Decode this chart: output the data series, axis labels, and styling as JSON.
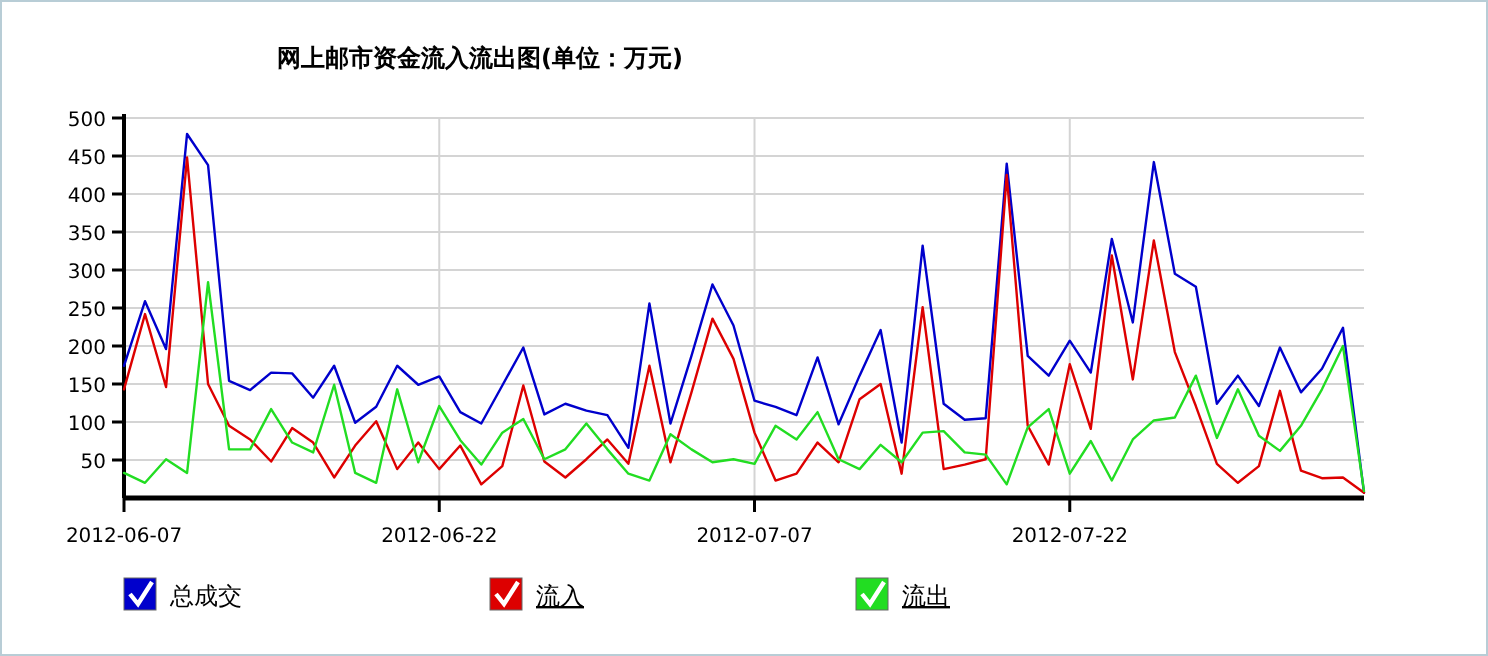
{
  "chart_data": {
    "type": "line",
    "title": "网上邮市资金流入流出图(单位：万元)",
    "x": [
      "2012-06-07",
      "2012-06-08",
      "2012-06-09",
      "2012-06-10",
      "2012-06-11",
      "2012-06-12",
      "2012-06-13",
      "2012-06-14",
      "2012-06-15",
      "2012-06-16",
      "2012-06-17",
      "2012-06-18",
      "2012-06-19",
      "2012-06-20",
      "2012-06-21",
      "2012-06-22",
      "2012-06-23",
      "2012-06-24",
      "2012-06-25",
      "2012-06-26",
      "2012-06-27",
      "2012-06-28",
      "2012-06-29",
      "2012-06-30",
      "2012-07-01",
      "2012-07-02",
      "2012-07-03",
      "2012-07-04",
      "2012-07-05",
      "2012-07-06",
      "2012-07-07",
      "2012-07-08",
      "2012-07-09",
      "2012-07-10",
      "2012-07-11",
      "2012-07-12",
      "2012-07-13",
      "2012-07-14",
      "2012-07-15",
      "2012-07-16",
      "2012-07-17",
      "2012-07-18",
      "2012-07-19",
      "2012-07-20",
      "2012-07-21",
      "2012-07-22",
      "2012-07-23",
      "2012-07-24",
      "2012-07-25",
      "2012-07-26",
      "2012-07-27",
      "2012-07-28",
      "2012-07-29",
      "2012-07-30",
      "2012-07-31",
      "2012-08-01",
      "2012-08-02",
      "2012-08-03",
      "2012-08-04",
      "2012-08-05"
    ],
    "series": [
      {
        "name": "总成交",
        "color": "#0000cc",
        "values": [
          174,
          259,
          196,
          479,
          438,
          154,
          142,
          165,
          164,
          132,
          174,
          99,
          120,
          174,
          149,
          160,
          113,
          98,
          148,
          198,
          110,
          124,
          115,
          109,
          66,
          256,
          98,
          187,
          281,
          227,
          128,
          120,
          109,
          185,
          97,
          161,
          221,
          73,
          332,
          124,
          103,
          105,
          440,
          187,
          161,
          207,
          165,
          341,
          231,
          442,
          295,
          278,
          124,
          161,
          121,
          198,
          139,
          170,
          224,
          7
        ]
      },
      {
        "name": "流入",
        "color": "#dd0000",
        "values": [
          143,
          242,
          146,
          448,
          150,
          95,
          77,
          48,
          92,
          73,
          27,
          69,
          101,
          38,
          73,
          38,
          69,
          18,
          42,
          148,
          48,
          27,
          51,
          77,
          45,
          174,
          47,
          139,
          236,
          183,
          86,
          23,
          32,
          73,
          47,
          130,
          150,
          32,
          251,
          38,
          44,
          51,
          425,
          95,
          44,
          176,
          91,
          319,
          156,
          339,
          192,
          121,
          45,
          20,
          42,
          141,
          36,
          26,
          27,
          7
        ]
      },
      {
        "name": "流出",
        "color": "#22dd22",
        "values": [
          33,
          20,
          51,
          33,
          284,
          64,
          64,
          117,
          73,
          60,
          149,
          33,
          20,
          143,
          47,
          121,
          76,
          44,
          86,
          104,
          51,
          64,
          98,
          64,
          32,
          23,
          84,
          64,
          47,
          51,
          45,
          95,
          77,
          113,
          51,
          38,
          70,
          47,
          86,
          88,
          60,
          57,
          18,
          93,
          117,
          32,
          75,
          23,
          77,
          102,
          106,
          161,
          79,
          143,
          82,
          62,
          95,
          143,
          200,
          9
        ]
      }
    ],
    "xlim": [
      "2012-06-07",
      "2012-08-05"
    ],
    "xticks": [
      "2012-06-07",
      "2012-06-22",
      "2012-07-07",
      "2012-07-22"
    ],
    "ylim": [
      0,
      500
    ],
    "yticks": [
      50,
      100,
      150,
      200,
      250,
      300,
      350,
      400,
      450,
      500
    ],
    "grid": true,
    "legend": "bottom",
    "marker": "none",
    "line_style": "solid"
  }
}
